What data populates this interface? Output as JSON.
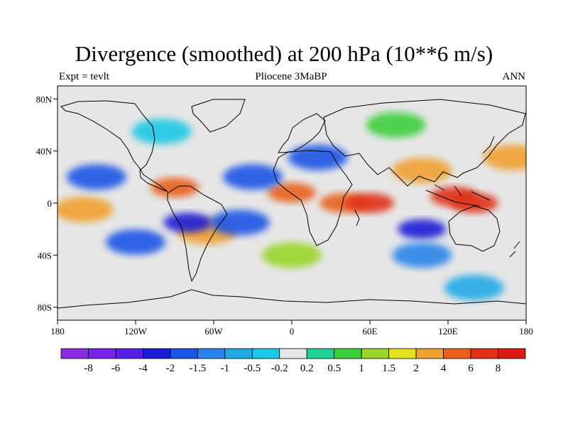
{
  "chart_data": {
    "type": "heatmap",
    "title": "Divergence (smoothed) at 200 hPa (10**6 m/s)",
    "subtitle_left": "Expt = tevlt",
    "subtitle_center": "Pliocene  3MaBP",
    "subtitle_right": "ANN",
    "projection": "cylindrical equidistant",
    "xlim": [
      -180,
      180
    ],
    "ylim": [
      -90,
      90
    ],
    "x_ticks": [
      {
        "value": -180,
        "label": "180"
      },
      {
        "value": -120,
        "label": "120W"
      },
      {
        "value": -60,
        "label": "60W"
      },
      {
        "value": 0,
        "label": "0"
      },
      {
        "value": 60,
        "label": "60E"
      },
      {
        "value": 120,
        "label": "120E"
      },
      {
        "value": 180,
        "label": "180"
      }
    ],
    "y_ticks": [
      {
        "value": 80,
        "label": "80N"
      },
      {
        "value": 40,
        "label": "40N"
      },
      {
        "value": 0,
        "label": "0"
      },
      {
        "value": -40,
        "label": "40S"
      },
      {
        "value": -80,
        "label": "80S"
      }
    ],
    "colorbar": {
      "levels": [
        "-8",
        "-6",
        "-4",
        "-2",
        "-1.5",
        "-1",
        "-0.5",
        "-0.2",
        "0.2",
        "0.5",
        "1",
        "1.5",
        "2",
        "4",
        "6",
        "8"
      ],
      "colors": [
        "#8a2be2",
        "#7722ee",
        "#5a1fe6",
        "#1c1cd6",
        "#1a55e6",
        "#2a85ea",
        "#22aae6",
        "#1cc8e6",
        "#e6e6e6",
        "#20d29a",
        "#3ccf3c",
        "#9ad62a",
        "#e3e020",
        "#f0a030",
        "#e8601a",
        "#e03018",
        "#d81a10"
      ]
    },
    "regions": [
      {
        "lon": -90,
        "lat": 12,
        "value": 4
      },
      {
        "lon": 0,
        "lat": 8,
        "value": 4
      },
      {
        "lon": 40,
        "lat": 0,
        "value": 4
      },
      {
        "lon": 60,
        "lat": 0,
        "value": 6
      },
      {
        "lon": 125,
        "lat": 5,
        "value": 6
      },
      {
        "lon": 140,
        "lat": 0,
        "value": 6
      },
      {
        "lon": 170,
        "lat": 35,
        "value": 2
      },
      {
        "lon": -160,
        "lat": -5,
        "value": 2
      },
      {
        "lon": -65,
        "lat": -22,
        "value": 2
      },
      {
        "lon": 100,
        "lat": 25,
        "value": 2
      },
      {
        "lon": -80,
        "lat": -15,
        "value": -4
      },
      {
        "lon": -40,
        "lat": -15,
        "value": -2
      },
      {
        "lon": 100,
        "lat": -20,
        "value": -4
      },
      {
        "lon": -150,
        "lat": 20,
        "value": -2
      },
      {
        "lon": -30,
        "lat": 20,
        "value": -2
      },
      {
        "lon": 20,
        "lat": 35,
        "value": -2
      },
      {
        "lon": 100,
        "lat": -40,
        "value": -1.5
      },
      {
        "lon": -120,
        "lat": -30,
        "value": -2
      },
      {
        "lon": 0,
        "lat": -40,
        "value": 1
      },
      {
        "lon": 140,
        "lat": -65,
        "value": -1
      },
      {
        "lon": -100,
        "lat": 55,
        "value": -0.5
      },
      {
        "lon": 80,
        "lat": 60,
        "value": 0.5
      }
    ]
  }
}
